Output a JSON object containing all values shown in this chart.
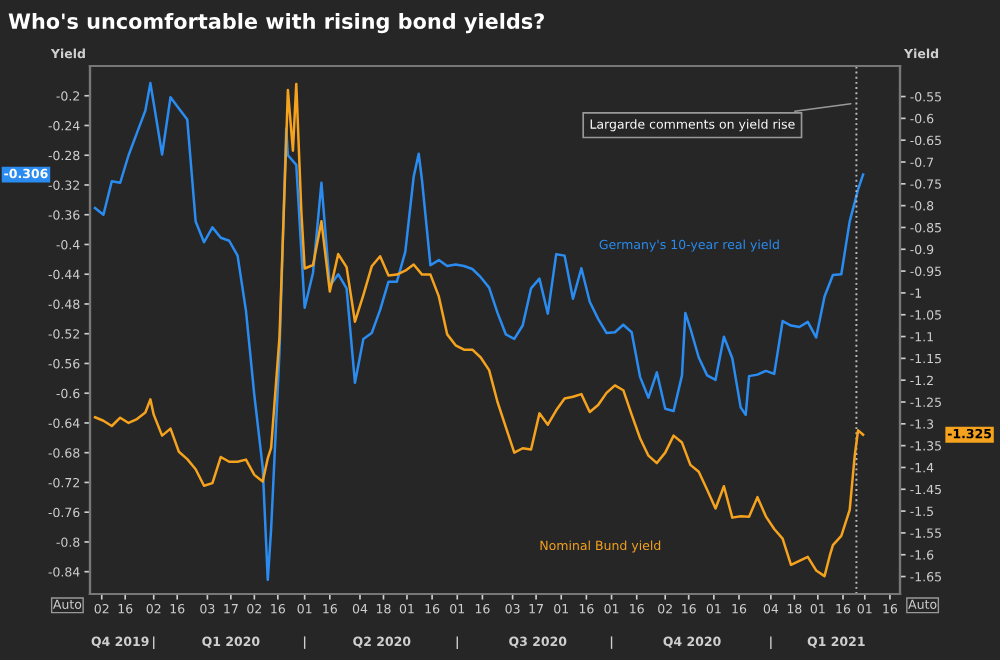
{
  "chart_data": {
    "type": "line",
    "title": "Who's uncomfortable with rising bond yields?",
    "ylabel": "Yield",
    "y2label": "Yield",
    "xlim": [
      "2019-11-25",
      "2021-03-22"
    ],
    "xticks": [
      {
        "value": "2019-12-02",
        "label": "02"
      },
      {
        "value": "2019-12-16",
        "label": "16"
      },
      {
        "value": "2020-01-02",
        "label": "02"
      },
      {
        "value": "2020-01-16",
        "label": "16"
      },
      {
        "value": "2020-02-03",
        "label": "03"
      },
      {
        "value": "2020-02-17",
        "label": "17"
      },
      {
        "value": "2020-03-02",
        "label": "02"
      },
      {
        "value": "2020-03-16",
        "label": "16"
      },
      {
        "value": "2020-04-01",
        "label": "01"
      },
      {
        "value": "2020-04-16",
        "label": "16"
      },
      {
        "value": "2020-05-04",
        "label": "04"
      },
      {
        "value": "2020-05-18",
        "label": "18"
      },
      {
        "value": "2020-06-01",
        "label": "01"
      },
      {
        "value": "2020-06-16",
        "label": "16"
      },
      {
        "value": "2020-07-01",
        "label": "01"
      },
      {
        "value": "2020-07-16",
        "label": "16"
      },
      {
        "value": "2020-08-03",
        "label": "03"
      },
      {
        "value": "2020-08-17",
        "label": "17"
      },
      {
        "value": "2020-09-01",
        "label": "01"
      },
      {
        "value": "2020-09-16",
        "label": "16"
      },
      {
        "value": "2020-10-01",
        "label": "01"
      },
      {
        "value": "2020-10-16",
        "label": "16"
      },
      {
        "value": "2020-11-02",
        "label": "02"
      },
      {
        "value": "2020-11-16",
        "label": "16"
      },
      {
        "value": "2020-12-01",
        "label": "01"
      },
      {
        "value": "2020-12-16",
        "label": "16"
      },
      {
        "value": "2021-01-04",
        "label": "04"
      },
      {
        "value": "2021-01-18",
        "label": "18"
      },
      {
        "value": "2021-02-01",
        "label": "01"
      },
      {
        "value": "2021-02-16",
        "label": "16"
      },
      {
        "value": "2021-03-01",
        "label": "01"
      },
      {
        "value": "2021-03-16",
        "label": "16"
      }
    ],
    "x2lim": [
      "2019-11-25",
      "2021-03-22"
    ],
    "x2ticks": [
      {
        "value": "2019-12-13",
        "label": "Q4 2019"
      },
      {
        "value": "2020-01-02",
        "label": "|"
      },
      {
        "value": "2020-02-17",
        "label": "Q1 2020"
      },
      {
        "value": "2020-04-01",
        "label": "|"
      },
      {
        "value": "2020-05-17",
        "label": "Q2 2020"
      },
      {
        "value": "2020-07-01",
        "label": "|"
      },
      {
        "value": "2020-08-18",
        "label": "Q3 2020"
      },
      {
        "value": "2020-10-01",
        "label": "|"
      },
      {
        "value": "2020-11-18",
        "label": "Q4 2020"
      },
      {
        "value": "2021-01-04",
        "label": "|"
      },
      {
        "value": "2021-02-12",
        "label": "Q1 2021"
      }
    ],
    "ylim": [
      -0.87,
      -0.16
    ],
    "yticks": [
      -0.2,
      -0.24,
      -0.28,
      -0.32,
      -0.36,
      -0.4,
      -0.44,
      -0.48,
      -0.52,
      -0.56,
      -0.6,
      -0.64,
      -0.68,
      -0.72,
      -0.76,
      -0.8,
      -0.84
    ],
    "y2lim": [
      -1.69,
      -0.48
    ],
    "y2ticks": [
      -0.55,
      -0.6,
      -0.65,
      -0.7,
      -0.75,
      -0.8,
      -0.85,
      -0.9,
      -0.95,
      -1,
      -1.05,
      -1.1,
      -1.15,
      -1.2,
      -1.25,
      -1.3,
      -1.35,
      -1.4,
      -1.45,
      -1.5,
      -1.55,
      -1.6,
      -1.65
    ],
    "series": [
      {
        "name": "Germany's 10-year real yield",
        "color": "#2a8cf0",
        "x": [
          "2019-11-28",
          "2019-12-03",
          "2019-12-08",
          "2019-12-13",
          "2019-12-18",
          "2019-12-23",
          "2019-12-28",
          "2019-12-31",
          "2020-01-02",
          "2020-01-07",
          "2020-01-12",
          "2020-01-17",
          "2020-01-22",
          "2020-01-27",
          "2020-02-01",
          "2020-02-06",
          "2020-02-11",
          "2020-02-16",
          "2020-02-21",
          "2020-02-26",
          "2020-03-02",
          "2020-03-07",
          "2020-03-10",
          "2020-03-12",
          "2020-03-17",
          "2020-03-21",
          "2020-03-22",
          "2020-03-27",
          "2020-04-01",
          "2020-04-06",
          "2020-04-11",
          "2020-04-16",
          "2020-04-21",
          "2020-04-26",
          "2020-05-01",
          "2020-05-06",
          "2020-05-11",
          "2020-05-16",
          "2020-05-21",
          "2020-05-26",
          "2020-05-31",
          "2020-06-05",
          "2020-06-08",
          "2020-06-10",
          "2020-06-15",
          "2020-06-20",
          "2020-06-25",
          "2020-06-30",
          "2020-07-05",
          "2020-07-10",
          "2020-07-15",
          "2020-07-20",
          "2020-07-25",
          "2020-07-30",
          "2020-08-04",
          "2020-08-09",
          "2020-08-14",
          "2020-08-19",
          "2020-08-24",
          "2020-08-29",
          "2020-09-03",
          "2020-09-08",
          "2020-09-13",
          "2020-09-18",
          "2020-09-23",
          "2020-09-28",
          "2020-10-03",
          "2020-10-08",
          "2020-10-13",
          "2020-10-18",
          "2020-10-23",
          "2020-10-28",
          "2020-11-02",
          "2020-11-07",
          "2020-11-12",
          "2020-11-14",
          "2020-11-17",
          "2020-11-22",
          "2020-11-27",
          "2020-12-02",
          "2020-12-07",
          "2020-12-12",
          "2020-12-17",
          "2020-12-20",
          "2020-12-22",
          "2020-12-27",
          "2021-01-01",
          "2021-01-06",
          "2021-01-11",
          "2021-01-16",
          "2021-01-21",
          "2021-01-26",
          "2021-01-31",
          "2021-02-05",
          "2021-02-10",
          "2021-02-15",
          "2021-02-20",
          "2021-02-25",
          "2021-02-28"
        ],
        "values": [
          -0.351,
          -0.36,
          -0.315,
          -0.317,
          -0.28,
          -0.25,
          -0.22,
          -0.183,
          -0.21,
          -0.279,
          -0.202,
          -0.217,
          -0.232,
          -0.369,
          -0.397,
          -0.377,
          -0.391,
          -0.395,
          -0.415,
          -0.489,
          -0.603,
          -0.7,
          -0.851,
          -0.783,
          -0.544,
          -0.244,
          -0.28,
          -0.293,
          -0.485,
          -0.438,
          -0.317,
          -0.456,
          -0.44,
          -0.459,
          -0.586,
          -0.527,
          -0.519,
          -0.488,
          -0.45,
          -0.45,
          -0.41,
          -0.309,
          -0.278,
          -0.314,
          -0.428,
          -0.421,
          -0.429,
          -0.427,
          -0.429,
          -0.433,
          -0.444,
          -0.458,
          -0.492,
          -0.521,
          -0.527,
          -0.509,
          -0.459,
          -0.446,
          -0.493,
          -0.413,
          -0.415,
          -0.473,
          -0.432,
          -0.477,
          -0.5,
          -0.519,
          -0.518,
          -0.508,
          -0.518,
          -0.578,
          -0.606,
          -0.572,
          -0.621,
          -0.624,
          -0.576,
          -0.492,
          -0.513,
          -0.552,
          -0.576,
          -0.582,
          -0.524,
          -0.553,
          -0.619,
          -0.629,
          -0.577,
          -0.575,
          -0.57,
          -0.574,
          -0.503,
          -0.509,
          -0.511,
          -0.504,
          -0.525,
          -0.47,
          -0.441,
          -0.44,
          -0.369,
          -0.326,
          -0.306
        ]
      },
      {
        "name": "Nominal Bund yield",
        "color": "#f5a21e",
        "axis": "y2",
        "x": [
          "2019-11-28",
          "2019-12-03",
          "2019-12-08",
          "2019-12-13",
          "2019-12-18",
          "2019-12-23",
          "2019-12-28",
          "2019-12-31",
          "2020-01-02",
          "2020-01-07",
          "2020-01-12",
          "2020-01-17",
          "2020-01-22",
          "2020-01-27",
          "2020-02-01",
          "2020-02-06",
          "2020-02-11",
          "2020-02-16",
          "2020-02-21",
          "2020-02-26",
          "2020-03-02",
          "2020-03-07",
          "2020-03-10",
          "2020-03-12",
          "2020-03-17",
          "2020-03-21",
          "2020-03-22",
          "2020-03-25",
          "2020-03-27",
          "2020-03-30",
          "2020-04-01",
          "2020-04-06",
          "2020-04-11",
          "2020-04-16",
          "2020-04-21",
          "2020-04-26",
          "2020-05-01",
          "2020-05-06",
          "2020-05-11",
          "2020-05-16",
          "2020-05-21",
          "2020-05-26",
          "2020-05-31",
          "2020-06-05",
          "2020-06-10",
          "2020-06-15",
          "2020-06-20",
          "2020-06-25",
          "2020-06-30",
          "2020-07-05",
          "2020-07-10",
          "2020-07-15",
          "2020-07-20",
          "2020-07-25",
          "2020-07-30",
          "2020-08-04",
          "2020-08-09",
          "2020-08-14",
          "2020-08-19",
          "2020-08-24",
          "2020-08-29",
          "2020-09-03",
          "2020-09-08",
          "2020-09-13",
          "2020-09-18",
          "2020-09-23",
          "2020-09-28",
          "2020-10-03",
          "2020-10-08",
          "2020-10-13",
          "2020-10-18",
          "2020-10-23",
          "2020-10-28",
          "2020-11-02",
          "2020-11-07",
          "2020-11-12",
          "2020-11-17",
          "2020-11-22",
          "2020-11-27",
          "2020-12-02",
          "2020-12-07",
          "2020-12-12",
          "2020-12-17",
          "2020-12-22",
          "2020-12-27",
          "2021-01-01",
          "2021-01-06",
          "2021-01-11",
          "2021-01-16",
          "2021-01-21",
          "2021-01-26",
          "2021-01-31",
          "2021-02-05",
          "2021-02-08",
          "2021-02-10",
          "2021-02-15",
          "2021-02-20",
          "2021-02-23",
          "2021-02-25",
          "2021-02-28"
        ],
        "values": [
          -1.285,
          -1.293,
          -1.305,
          -1.286,
          -1.298,
          -1.289,
          -1.274,
          -1.244,
          -1.279,
          -1.327,
          -1.311,
          -1.364,
          -1.381,
          -1.404,
          -1.442,
          -1.436,
          -1.376,
          -1.387,
          -1.387,
          -1.382,
          -1.417,
          -1.432,
          -1.379,
          -1.355,
          -1.101,
          -0.652,
          -0.535,
          -0.674,
          -0.521,
          -0.812,
          -0.944,
          -0.936,
          -0.836,
          -0.997,
          -0.911,
          -0.941,
          -1.066,
          -1.005,
          -0.939,
          -0.916,
          -0.96,
          -0.958,
          -0.949,
          -0.935,
          -0.958,
          -0.958,
          -1.008,
          -1.095,
          -1.12,
          -1.13,
          -1.13,
          -1.148,
          -1.177,
          -1.25,
          -1.308,
          -1.366,
          -1.356,
          -1.359,
          -1.276,
          -1.302,
          -1.269,
          -1.242,
          -1.238,
          -1.232,
          -1.273,
          -1.257,
          -1.229,
          -1.212,
          -1.223,
          -1.279,
          -1.333,
          -1.373,
          -1.39,
          -1.366,
          -1.327,
          -1.343,
          -1.394,
          -1.41,
          -1.451,
          -1.494,
          -1.443,
          -1.515,
          -1.512,
          -1.513,
          -1.468,
          -1.512,
          -1.541,
          -1.563,
          -1.623,
          -1.614,
          -1.605,
          -1.636,
          -1.649,
          -1.604,
          -1.578,
          -1.557,
          -1.497,
          -1.373,
          -1.315,
          -1.325
        ]
      }
    ],
    "ref_lines": [
      {
        "axis": "x",
        "value": "2021-02-24",
        "label": "Largarde comments on yield rise",
        "color": "#bbbbbb",
        "line_style": "dotted"
      }
    ],
    "annotations": [
      "-0.306",
      "-1.325",
      "Auto",
      "Auto"
    ]
  }
}
